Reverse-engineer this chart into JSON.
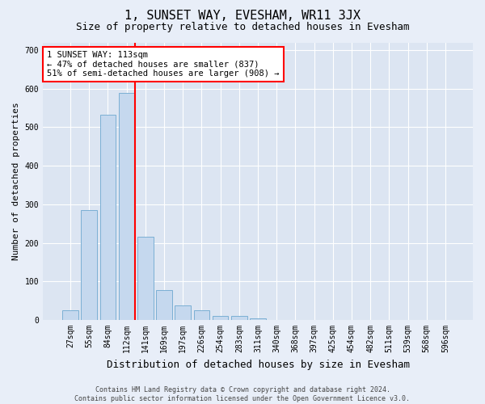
{
  "title": "1, SUNSET WAY, EVESHAM, WR11 3JX",
  "subtitle": "Size of property relative to detached houses in Evesham",
  "xlabel": "Distribution of detached houses by size in Evesham",
  "ylabel": "Number of detached properties",
  "footer_line1": "Contains HM Land Registry data © Crown copyright and database right 2024.",
  "footer_line2": "Contains public sector information licensed under the Open Government Licence v3.0.",
  "categories": [
    "27sqm",
    "55sqm",
    "84sqm",
    "112sqm",
    "141sqm",
    "169sqm",
    "197sqm",
    "226sqm",
    "254sqm",
    "283sqm",
    "311sqm",
    "340sqm",
    "368sqm",
    "397sqm",
    "425sqm",
    "454sqm",
    "482sqm",
    "511sqm",
    "539sqm",
    "568sqm",
    "596sqm"
  ],
  "values": [
    25,
    285,
    533,
    590,
    215,
    78,
    38,
    25,
    10,
    10,
    5,
    0,
    0,
    0,
    0,
    0,
    0,
    0,
    0,
    0,
    0
  ],
  "bar_color": "#c5d8ee",
  "bar_edgecolor": "#7bafd4",
  "vline_index": 3,
  "vline_color": "red",
  "annotation_text": "1 SUNSET WAY: 113sqm\n← 47% of detached houses are smaller (837)\n51% of semi-detached houses are larger (908) →",
  "annotation_box_color": "white",
  "annotation_box_edgecolor": "red",
  "ylim": [
    0,
    720
  ],
  "yticks": [
    0,
    100,
    200,
    300,
    400,
    500,
    600,
    700
  ],
  "background_color": "#e8eef8",
  "plot_background_color": "#dce5f2",
  "title_fontsize": 11,
  "subtitle_fontsize": 9,
  "xlabel_fontsize": 9,
  "ylabel_fontsize": 8,
  "tick_fontsize": 7,
  "annotation_fontsize": 7.5,
  "footer_fontsize": 6
}
